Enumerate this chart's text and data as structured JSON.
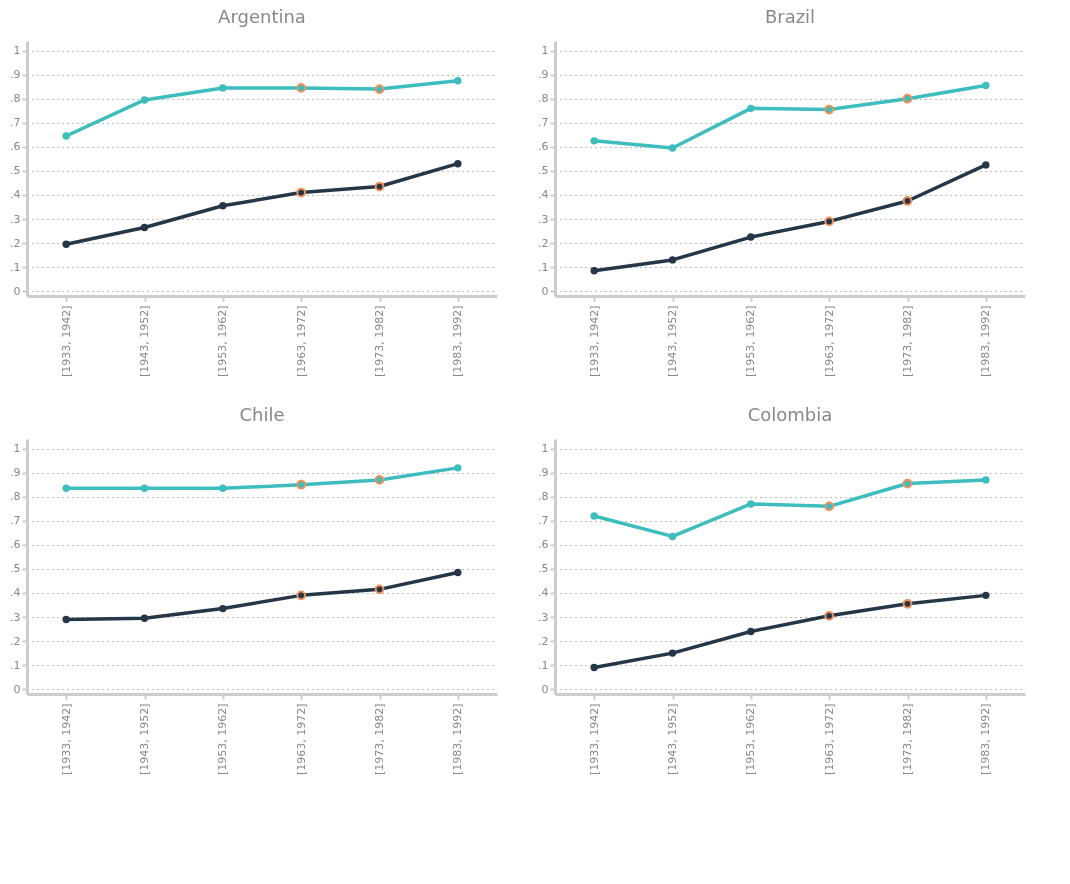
{
  "chart_data": [
    {
      "type": "line",
      "title": "Argentina",
      "categories": [
        "[1933, 1942]",
        "[1943, 1952]",
        "[1953, 1962]",
        "[1963, 1972]",
        "[1973, 1982]",
        "[1983, 1992]"
      ],
      "ylim": [
        -0.02,
        1.04
      ],
      "yticks": [
        {
          "value": 0,
          "label": "0"
        },
        {
          "value": 0.1,
          "label": ".1"
        },
        {
          "value": 0.2,
          "label": ".2"
        },
        {
          "value": 0.3,
          "label": ".3"
        },
        {
          "value": 0.4,
          "label": ".4"
        },
        {
          "value": 0.5,
          "label": ".5"
        },
        {
          "value": 0.6,
          "label": ".6"
        },
        {
          "value": 0.7,
          "label": ".7"
        },
        {
          "value": 0.8,
          "label": ".8"
        },
        {
          "value": 0.9,
          "label": ".9"
        },
        {
          "value": 1,
          "label": "1"
        }
      ],
      "grid": "y",
      "marker": "circle",
      "series": [
        {
          "color": "#3dbdbd",
          "values": [
            0.645,
            0.795,
            0.845,
            0.845,
            0.84,
            0.875
          ]
        },
        {
          "color": "#253746",
          "values": [
            0.195,
            0.265,
            0.355,
            0.41,
            0.435,
            0.53
          ]
        },
        {
          "type": "scatter",
          "color": "#f0905a",
          "values": [
            null,
            null,
            null,
            0.845,
            0.84,
            null
          ]
        },
        {
          "type": "scatter",
          "color": "#f0905a",
          "values": [
            null,
            null,
            null,
            0.41,
            0.435,
            null
          ]
        }
      ]
    },
    {
      "type": "line",
      "title": "Brazil",
      "categories": [
        "[1933, 1942]",
        "[1943, 1952]",
        "[1953, 1962]",
        "[1963, 1972]",
        "[1973, 1982]",
        "[1983, 1992]"
      ],
      "ylim": [
        -0.02,
        1.04
      ],
      "yticks": [
        {
          "value": 0,
          "label": "0"
        },
        {
          "value": 0.1,
          "label": ".1"
        },
        {
          "value": 0.2,
          "label": ".2"
        },
        {
          "value": 0.3,
          "label": ".3"
        },
        {
          "value": 0.4,
          "label": ".4"
        },
        {
          "value": 0.5,
          "label": ".5"
        },
        {
          "value": 0.6,
          "label": ".6"
        },
        {
          "value": 0.7,
          "label": ".7"
        },
        {
          "value": 0.8,
          "label": ".8"
        },
        {
          "value": 0.9,
          "label": ".9"
        },
        {
          "value": 1,
          "label": "1"
        }
      ],
      "grid": "y",
      "marker": "circle",
      "series": [
        {
          "color": "#3dbdbd",
          "values": [
            0.625,
            0.595,
            0.76,
            0.755,
            0.8,
            0.855
          ]
        },
        {
          "color": "#253746",
          "values": [
            0.085,
            0.13,
            0.225,
            0.29,
            0.375,
            0.525
          ]
        },
        {
          "type": "scatter",
          "color": "#f0905a",
          "values": [
            null,
            null,
            null,
            0.755,
            0.8,
            null
          ]
        },
        {
          "type": "scatter",
          "color": "#f0905a",
          "values": [
            null,
            null,
            null,
            0.29,
            0.375,
            null
          ]
        }
      ]
    },
    {
      "type": "line",
      "title": "Chile",
      "categories": [
        "[1933, 1942]",
        "[1943, 1952]",
        "[1953, 1962]",
        "[1963, 1972]",
        "[1973, 1982]",
        "[1983, 1992]"
      ],
      "ylim": [
        -0.02,
        1.04
      ],
      "yticks": [
        {
          "value": 0,
          "label": "0"
        },
        {
          "value": 0.1,
          "label": ".1"
        },
        {
          "value": 0.2,
          "label": ".2"
        },
        {
          "value": 0.3,
          "label": ".3"
        },
        {
          "value": 0.4,
          "label": ".4"
        },
        {
          "value": 0.5,
          "label": ".5"
        },
        {
          "value": 0.6,
          "label": ".6"
        },
        {
          "value": 0.7,
          "label": ".7"
        },
        {
          "value": 0.8,
          "label": ".8"
        },
        {
          "value": 0.9,
          "label": ".9"
        },
        {
          "value": 1,
          "label": "1"
        }
      ],
      "grid": "y",
      "marker": "circle",
      "series": [
        {
          "color": "#3dbdbd",
          "values": [
            0.835,
            0.835,
            0.835,
            0.85,
            0.87,
            0.92
          ]
        },
        {
          "color": "#253746",
          "values": [
            0.29,
            0.295,
            0.335,
            0.39,
            0.415,
            0.485
          ]
        },
        {
          "type": "scatter",
          "color": "#f0905a",
          "values": [
            null,
            null,
            null,
            0.85,
            0.87,
            null
          ]
        },
        {
          "type": "scatter",
          "color": "#f0905a",
          "values": [
            null,
            null,
            null,
            0.39,
            0.415,
            null
          ]
        }
      ]
    },
    {
      "type": "line",
      "title": "Colombia",
      "categories": [
        "[1933, 1942]",
        "[1943, 1952]",
        "[1953, 1962]",
        "[1963, 1972]",
        "[1973, 1982]",
        "[1983, 1992]"
      ],
      "ylim": [
        -0.02,
        1.04
      ],
      "yticks": [
        {
          "value": 0,
          "label": "0"
        },
        {
          "value": 0.1,
          "label": ".1"
        },
        {
          "value": 0.2,
          "label": ".2"
        },
        {
          "value": 0.3,
          "label": ".3"
        },
        {
          "value": 0.4,
          "label": ".4"
        },
        {
          "value": 0.5,
          "label": ".5"
        },
        {
          "value": 0.6,
          "label": ".6"
        },
        {
          "value": 0.7,
          "label": ".7"
        },
        {
          "value": 0.8,
          "label": ".8"
        },
        {
          "value": 0.9,
          "label": ".9"
        },
        {
          "value": 1,
          "label": "1"
        }
      ],
      "grid": "y",
      "marker": "circle",
      "series": [
        {
          "color": "#3dbdbd",
          "values": [
            0.72,
            0.635,
            0.77,
            0.76,
            0.855,
            0.87
          ]
        },
        {
          "color": "#253746",
          "values": [
            0.09,
            0.15,
            0.24,
            0.305,
            0.355,
            0.39
          ]
        },
        {
          "type": "scatter",
          "color": "#f0905a",
          "values": [
            null,
            null,
            null,
            0.76,
            0.855,
            null
          ]
        },
        {
          "type": "scatter",
          "color": "#f0905a",
          "values": [
            null,
            null,
            null,
            0.305,
            0.355,
            null
          ]
        }
      ]
    }
  ]
}
